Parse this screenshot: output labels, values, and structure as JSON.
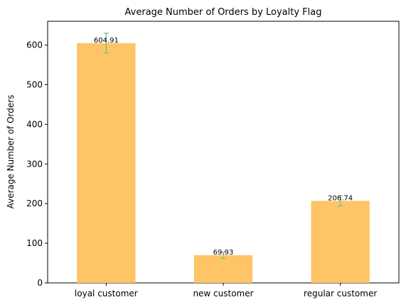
{
  "chart_data": {
    "type": "bar",
    "title": "Average Number of Orders by Loyalty Flag",
    "xlabel": "",
    "ylabel": "Average Number of Orders",
    "categories": [
      "loyal customer",
      "new customer",
      "regular customer"
    ],
    "values": [
      604.91,
      69.93,
      206.74
    ],
    "value_labels": [
      "604.91",
      "69.93",
      "206.74"
    ],
    "error": [
      25,
      8,
      13
    ],
    "ylim": [
      0,
      660
    ],
    "yticks": [
      0,
      100,
      200,
      300,
      400,
      500,
      600
    ],
    "grid": false,
    "bar_color": "#ffc466",
    "error_color": "#7fbf7f"
  }
}
